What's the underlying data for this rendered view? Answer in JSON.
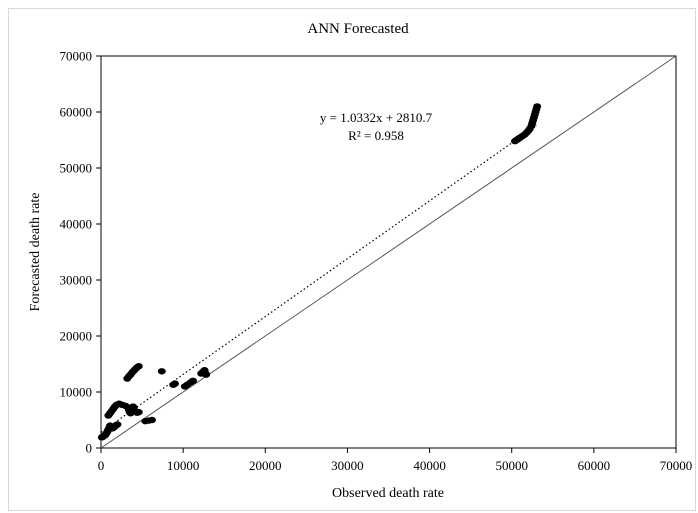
{
  "chart_data": {
    "type": "scatter",
    "title": "ANN Forecasted",
    "xlabel": "Observed death rate",
    "ylabel": "Forecasted death rate",
    "xlim": [
      0,
      70000
    ],
    "ylim": [
      0,
      70000
    ],
    "x_ticks": [
      "0",
      "10000",
      "20000",
      "30000",
      "40000",
      "50000",
      "60000",
      "70000"
    ],
    "y_ticks": [
      "0",
      "10000",
      "20000",
      "30000",
      "40000",
      "50000",
      "60000",
      "70000"
    ],
    "grid": false,
    "legend": "none",
    "series": [
      {
        "marker_color": "#000000",
        "points": [
          [
            100,
            1900
          ],
          [
            200,
            2000
          ],
          [
            300,
            2100
          ],
          [
            400,
            2200
          ],
          [
            500,
            2300
          ],
          [
            600,
            2500
          ],
          [
            700,
            2700
          ],
          [
            800,
            3000
          ],
          [
            900,
            3300
          ],
          [
            1000,
            3600
          ],
          [
            1100,
            4000
          ],
          [
            1200,
            3800
          ],
          [
            1400,
            3500
          ],
          [
            1600,
            3700
          ],
          [
            1800,
            4000
          ],
          [
            2000,
            4200
          ],
          [
            900,
            5800
          ],
          [
            1100,
            6200
          ],
          [
            1300,
            6600
          ],
          [
            1500,
            7000
          ],
          [
            1700,
            7400
          ],
          [
            1900,
            7700
          ],
          [
            2200,
            7900
          ],
          [
            2600,
            7700
          ],
          [
            3000,
            7500
          ],
          [
            3300,
            7200
          ],
          [
            3400,
            6800
          ],
          [
            3500,
            6400
          ],
          [
            3600,
            6200
          ],
          [
            3700,
            6500
          ],
          [
            3800,
            7000
          ],
          [
            3900,
            7400
          ],
          [
            4000,
            7200
          ],
          [
            4200,
            6500
          ],
          [
            4400,
            6300
          ],
          [
            4600,
            6400
          ],
          [
            3200,
            12400
          ],
          [
            3400,
            12800
          ],
          [
            3600,
            13100
          ],
          [
            3800,
            13500
          ],
          [
            4000,
            13800
          ],
          [
            4200,
            14100
          ],
          [
            4400,
            14400
          ],
          [
            4600,
            14600
          ],
          [
            5400,
            4800
          ],
          [
            5800,
            4900
          ],
          [
            6200,
            5000
          ],
          [
            7400,
            13700
          ],
          [
            8800,
            11300
          ],
          [
            9000,
            11500
          ],
          [
            10200,
            11000
          ],
          [
            10500,
            11300
          ],
          [
            10900,
            11700
          ],
          [
            11200,
            12000
          ],
          [
            12200,
            13300
          ],
          [
            12400,
            13600
          ],
          [
            12600,
            13900
          ],
          [
            12700,
            13400
          ],
          [
            12800,
            13100
          ],
          [
            50400,
            54800
          ],
          [
            50600,
            55000
          ],
          [
            50800,
            55200
          ],
          [
            51000,
            55400
          ],
          [
            51200,
            55600
          ],
          [
            51400,
            55800
          ],
          [
            51600,
            56000
          ],
          [
            51800,
            56300
          ],
          [
            52000,
            56600
          ],
          [
            52200,
            57000
          ],
          [
            52400,
            57500
          ],
          [
            52500,
            58000
          ],
          [
            52600,
            58500
          ],
          [
            52700,
            59000
          ],
          [
            52800,
            59500
          ],
          [
            52900,
            60000
          ],
          [
            53000,
            60500
          ],
          [
            53100,
            61000
          ]
        ]
      }
    ],
    "trendline": {
      "style": "dotted",
      "slope": 1.0332,
      "intercept": 2810.7,
      "x_range": [
        0,
        53000
      ]
    },
    "reference_line": {
      "style": "solid",
      "from": [
        0,
        0
      ],
      "to": [
        70000,
        70000
      ]
    },
    "annotations": {
      "equation": "y = 1.0332x + 2810.7",
      "r_squared": "R² = 0.958"
    }
  }
}
